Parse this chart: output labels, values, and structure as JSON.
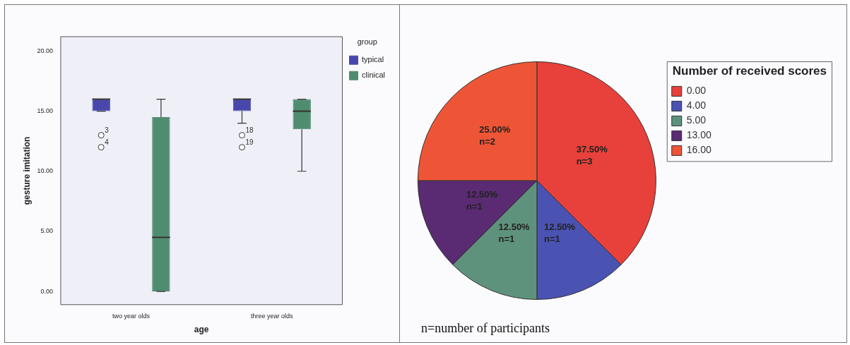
{
  "chart_data": [
    {
      "type": "box",
      "xlabel": "age",
      "ylabel": "gesture imitation",
      "categories": [
        "two year olds",
        "three year olds"
      ],
      "series": [
        {
          "name": "typical",
          "color": "#4848ac",
          "boxes": [
            {
              "low": 15,
              "q1": 15,
              "median": 16,
              "q3": 16,
              "high": 16,
              "outliers": [
                13,
                12
              ]
            },
            {
              "low": 14,
              "q1": 15,
              "median": 16,
              "q3": 16,
              "high": 16,
              "outliers": [
                13,
                12
              ]
            }
          ]
        },
        {
          "name": "clinical",
          "color": "#508c70",
          "boxes": [
            {
              "low": 0,
              "q1": 0,
              "median": 4.5,
              "q3": 14.5,
              "high": 16
            },
            {
              "low": 10,
              "q1": 13.5,
              "median": 15,
              "q3": 16,
              "high": 16
            }
          ]
        }
      ],
      "ylim": [
        -1.1,
        21.2
      ],
      "yticks": [
        {
          "value": 0,
          "label": "0.00"
        },
        {
          "value": 5,
          "label": "5.00"
        },
        {
          "value": 10,
          "label": "10.00"
        },
        {
          "value": 15,
          "label": "15.00"
        },
        {
          "value": 20,
          "label": "20.00"
        }
      ],
      "legend": "top right",
      "legend_title": "group",
      "annotations": [
        "3",
        "4",
        "18",
        "19"
      ]
    },
    {
      "type": "pie",
      "categories": [
        "0.00",
        "4.00",
        "5.00",
        "13.00",
        "16.00"
      ],
      "values": [
        37.5,
        12.5,
        12.5,
        12.5,
        25
      ],
      "colors": [
        "#e8403a",
        "#4a52b2",
        "#5f927c",
        "#5a2a72",
        "#ee5536"
      ],
      "value_labels": [
        "37.50%\nn=3",
        "12.50%\nn=1",
        "12.50%\nn=1",
        "12.50%\nn=1",
        "25.00%\nn=2"
      ],
      "legend": "top right",
      "legend_title": "Number of received scores",
      "annotations": [
        "n=number of participants"
      ]
    }
  ]
}
